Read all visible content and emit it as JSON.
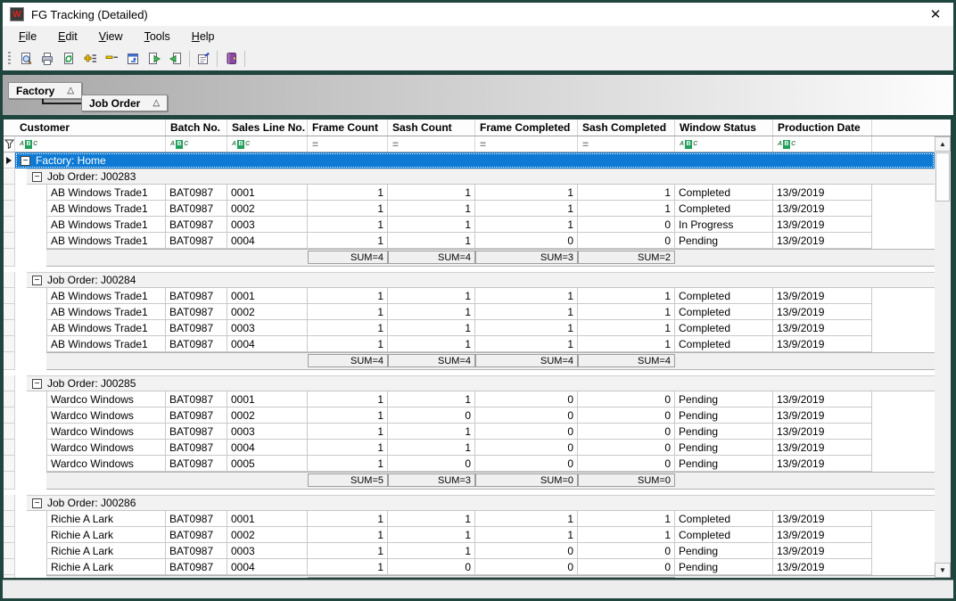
{
  "window": {
    "title": "FG Tracking (Detailed)",
    "icon_glyph": "W",
    "close_glyph": "✕"
  },
  "menu_bar": {
    "items": [
      "File",
      "Edit",
      "View",
      "Tools",
      "Help"
    ]
  },
  "toolbar": {
    "items": [
      {
        "name": "print-preview-icon",
        "sep_before": false
      },
      {
        "name": "print-icon",
        "sep_before": false
      },
      {
        "name": "refresh-icon",
        "sep_before": false
      },
      {
        "name": "expand-all-icon",
        "sep_before": false
      },
      {
        "name": "collapse-all-icon",
        "sep_before": false
      },
      {
        "name": "group-panel-icon",
        "sep_before": false
      },
      {
        "name": "export-next-icon",
        "sep_before": false
      },
      {
        "name": "export-prev-icon",
        "sep_before": false
      },
      {
        "name": "properties-icon",
        "sep_before": true
      },
      {
        "name": "help-icon",
        "sep_before": true
      }
    ],
    "trailing_separator": true
  },
  "group_panel": {
    "buttons": [
      {
        "label": "Factory",
        "sort_glyph": "△"
      },
      {
        "label": "Job Order",
        "sort_glyph": "△"
      }
    ]
  },
  "grid": {
    "columns": [
      {
        "label": "Customer",
        "filter": "abc"
      },
      {
        "label": "Batch No.",
        "filter": "abc"
      },
      {
        "label": "Sales Line No.",
        "filter": "abc"
      },
      {
        "label": "Frame Count",
        "filter": "eq"
      },
      {
        "label": "Sash Count",
        "filter": "eq"
      },
      {
        "label": "Frame Completed",
        "filter": "eq"
      },
      {
        "label": "Sash Completed",
        "filter": "eq"
      },
      {
        "label": "Window Status",
        "filter": "abc"
      },
      {
        "label": "Production Date",
        "filter": "abc"
      }
    ],
    "group_row": {
      "label": "Factory: Home",
      "selected": true
    },
    "job_groups": [
      {
        "label": "Job Order: J00283",
        "rows": [
          [
            "AB Windows Trade1",
            "BAT0987",
            "0001",
            "1",
            "1",
            "1",
            "1",
            "Completed",
            "13/9/2019"
          ],
          [
            "AB Windows Trade1",
            "BAT0987",
            "0002",
            "1",
            "1",
            "1",
            "1",
            "Completed",
            "13/9/2019"
          ],
          [
            "AB Windows Trade1",
            "BAT0987",
            "0003",
            "1",
            "1",
            "1",
            "0",
            "In Progress",
            "13/9/2019"
          ],
          [
            "AB Windows Trade1",
            "BAT0987",
            "0004",
            "1",
            "1",
            "0",
            "0",
            "Pending",
            "13/9/2019"
          ]
        ],
        "sums": [
          "SUM=4",
          "SUM=4",
          "SUM=3",
          "SUM=2"
        ]
      },
      {
        "label": "Job Order: J00284",
        "rows": [
          [
            "AB Windows Trade1",
            "BAT0987",
            "0001",
            "1",
            "1",
            "1",
            "1",
            "Completed",
            "13/9/2019"
          ],
          [
            "AB Windows Trade1",
            "BAT0987",
            "0002",
            "1",
            "1",
            "1",
            "1",
            "Completed",
            "13/9/2019"
          ],
          [
            "AB Windows Trade1",
            "BAT0987",
            "0003",
            "1",
            "1",
            "1",
            "1",
            "Completed",
            "13/9/2019"
          ],
          [
            "AB Windows Trade1",
            "BAT0987",
            "0004",
            "1",
            "1",
            "1",
            "1",
            "Completed",
            "13/9/2019"
          ]
        ],
        "sums": [
          "SUM=4",
          "SUM=4",
          "SUM=4",
          "SUM=4"
        ]
      },
      {
        "label": "Job Order: J00285",
        "rows": [
          [
            "Wardco Windows",
            "BAT0987",
            "0001",
            "1",
            "1",
            "0",
            "0",
            "Pending",
            "13/9/2019"
          ],
          [
            "Wardco Windows",
            "BAT0987",
            "0002",
            "1",
            "0",
            "0",
            "0",
            "Pending",
            "13/9/2019"
          ],
          [
            "Wardco Windows",
            "BAT0987",
            "0003",
            "1",
            "1",
            "0",
            "0",
            "Pending",
            "13/9/2019"
          ],
          [
            "Wardco Windows",
            "BAT0987",
            "0004",
            "1",
            "1",
            "0",
            "0",
            "Pending",
            "13/9/2019"
          ],
          [
            "Wardco Windows",
            "BAT0987",
            "0005",
            "1",
            "0",
            "0",
            "0",
            "Pending",
            "13/9/2019"
          ]
        ],
        "sums": [
          "SUM=5",
          "SUM=3",
          "SUM=0",
          "SUM=0"
        ]
      },
      {
        "label": "Job Order: J00286",
        "rows": [
          [
            "Richie A Lark",
            "BAT0987",
            "0001",
            "1",
            "1",
            "1",
            "1",
            "Completed",
            "13/9/2019"
          ],
          [
            "Richie A Lark",
            "BAT0987",
            "0002",
            "1",
            "1",
            "1",
            "1",
            "Completed",
            "13/9/2019"
          ],
          [
            "Richie A Lark",
            "BAT0987",
            "0003",
            "1",
            "1",
            "0",
            "0",
            "Pending",
            "13/9/2019"
          ],
          [
            "Richie A Lark",
            "BAT0987",
            "0004",
            "1",
            "0",
            "0",
            "0",
            "Pending",
            "13/9/2019"
          ]
        ],
        "sums": [
          "",
          "",
          "",
          ""
        ]
      }
    ],
    "collapse_glyph": "−"
  },
  "scrollbar": {
    "up_glyph": "▲",
    "down_glyph": "▼"
  },
  "colors": {
    "selection_blue": "#0e7ad4",
    "window_chrome": "#20443e",
    "filter_green": "#21a05a",
    "group_row_bg": "#f2f2f2",
    "footer_bg": "#f0f0f0"
  }
}
